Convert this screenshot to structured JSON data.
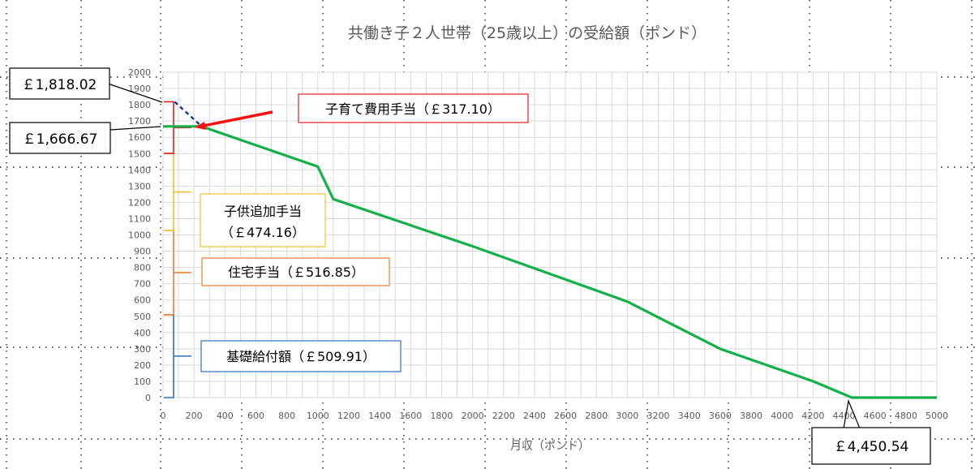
{
  "chart_data": {
    "type": "line",
    "title": "共働き子２人世帯（25歳以上）の受給額（ポンド）",
    "xlabel": "月収（ポンド）",
    "ylabel": "",
    "xlim": [
      0,
      5000
    ],
    "ylim": [
      0,
      2000
    ],
    "grid": true,
    "x_ticks": [
      0,
      200,
      400,
      600,
      800,
      1000,
      1200,
      1400,
      1600,
      1800,
      2000,
      2200,
      2400,
      2600,
      2800,
      3000,
      3200,
      3400,
      3600,
      3800,
      4000,
      4200,
      4400,
      4600,
      4800,
      5000
    ],
    "y_ticks": [
      0,
      100,
      200,
      300,
      400,
      500,
      600,
      700,
      800,
      900,
      1000,
      1100,
      1200,
      1300,
      1400,
      1500,
      1600,
      1700,
      1800,
      1900,
      2000
    ],
    "series": [
      {
        "color": "#14b04a",
        "x": [
          0,
          75,
          200,
          250,
          1000,
          1100,
          2000,
          3000,
          3600,
          4200,
          4450.54,
          5000
        ],
        "y": [
          1666.67,
          1666.67,
          1666.67,
          1666.67,
          1420,
          1220,
          930,
          590,
          300,
          100,
          0,
          0
        ]
      },
      {
        "style": "dashed",
        "color": "#1f3f8f",
        "x": [
          75,
          250
        ],
        "y": [
          1818.02,
          1666.67
        ]
      }
    ],
    "components": [
      {
        "label": "基礎給付額（￡509.91）",
        "value": 509.91,
        "color": "#2e6fc0"
      },
      {
        "label": "住宅手当（￡516.85）",
        "value": 516.85,
        "color": "#ed7d31"
      },
      {
        "label_line1": "子供追加手当",
        "label_line2": "（￡474.16）",
        "value": 474.16,
        "color": "#f2c12e"
      },
      {
        "label": "子育て費用手当（￡317.10）",
        "value": 317.1,
        "color": "#e32020"
      }
    ],
    "callouts": {
      "max_label": "￡1,818.02",
      "max_value": 1818.02,
      "flat_label": "￡1,666.67",
      "flat_value": 1666.67,
      "zero_label": "￡4,450.54",
      "zero_x": 4450.54
    }
  }
}
